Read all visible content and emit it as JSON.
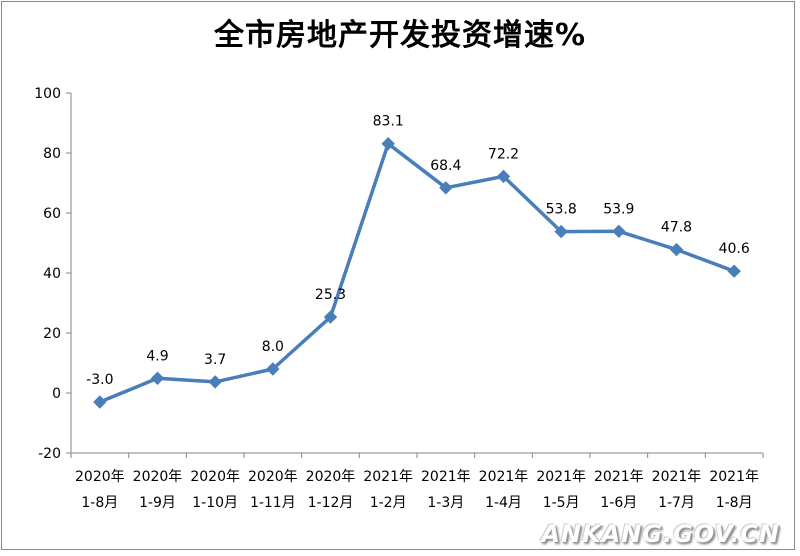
{
  "chart_data": {
    "type": "line",
    "title": "全市房地产开发投资增速%",
    "categories": [
      "2020年1-8月",
      "2020年1-9月",
      "2020年1-10月",
      "2020年1-11月",
      "2020年1-12月",
      "2021年1-2月",
      "2021年1-3月",
      "2021年1-4月",
      "2021年1-5月",
      "2021年1-6月",
      "2021年1-7月",
      "2021年1-8月"
    ],
    "category_lines": [
      [
        "2020年",
        "1-8月"
      ],
      [
        "2020年",
        "1-9月"
      ],
      [
        "2020年",
        "1-10月"
      ],
      [
        "2020年",
        "1-11月"
      ],
      [
        "2020年",
        "1-12月"
      ],
      [
        "2021年",
        "1-2月"
      ],
      [
        "2021年",
        "1-3月"
      ],
      [
        "2021年",
        "1-4月"
      ],
      [
        "2021年",
        "1-5月"
      ],
      [
        "2021年",
        "1-6月"
      ],
      [
        "2021年",
        "1-7月"
      ],
      [
        "2021年",
        "1-8月"
      ]
    ],
    "values": [
      -3.0,
      4.9,
      3.7,
      8.0,
      25.3,
      83.1,
      68.4,
      72.2,
      53.8,
      53.9,
      47.8,
      40.6
    ],
    "data_labels": [
      "-3.0",
      "4.9",
      "3.7",
      "8.0",
      "25.3",
      "83.1",
      "68.4",
      "72.2",
      "53.8",
      "53.9",
      "47.8",
      "40.6"
    ],
    "ylim": [
      -20,
      100
    ],
    "yticks": [
      -20,
      0,
      20,
      40,
      60,
      80,
      100
    ],
    "xlabel": "",
    "ylabel": "",
    "grid": false,
    "legend": "none",
    "line_color": "#4a7ebb",
    "marker": "diamond"
  },
  "watermark": "ANKANG.GOV.CN"
}
